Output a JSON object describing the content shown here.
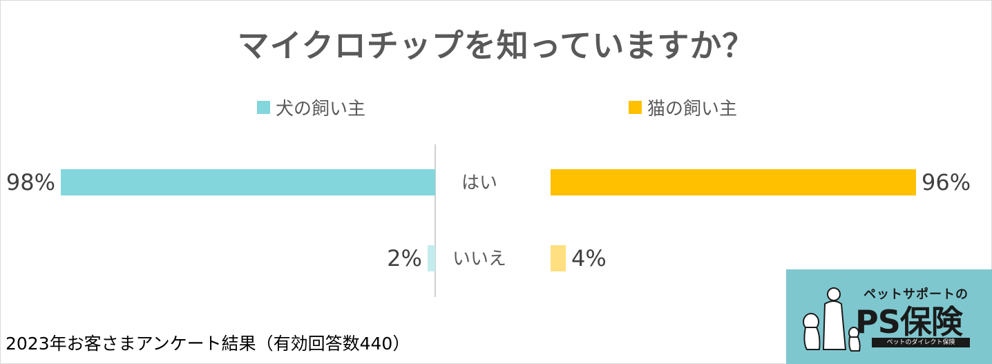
{
  "chart_data": {
    "type": "bar",
    "title": "マイクロチップを知っていますか？",
    "categories": [
      "はい",
      "いいえ"
    ],
    "series": [
      {
        "name": "犬の飼い主",
        "values": [
          98,
          2
        ],
        "labels": [
          "98%",
          "2%"
        ],
        "colors": [
          "#82d6dc",
          "#c4ecee"
        ],
        "direction": "left"
      },
      {
        "name": "猫の飼い主",
        "values": [
          96,
          4
        ],
        "labels": [
          "96%",
          "4%"
        ],
        "colors": [
          "#ffc000",
          "#ffdf80"
        ],
        "direction": "right"
      }
    ],
    "legend_colors": [
      "#82d6dc",
      "#ffc000"
    ],
    "xlim": [
      0,
      100
    ],
    "legend_position": "top",
    "grid": false
  },
  "footer": {
    "note": "2023年お客さまアンケート結果（有効回答数440）"
  },
  "logo": {
    "tagline": "ペットサポートの",
    "name": "PS保険",
    "subtitle": "ペットのダイレクト保険"
  }
}
